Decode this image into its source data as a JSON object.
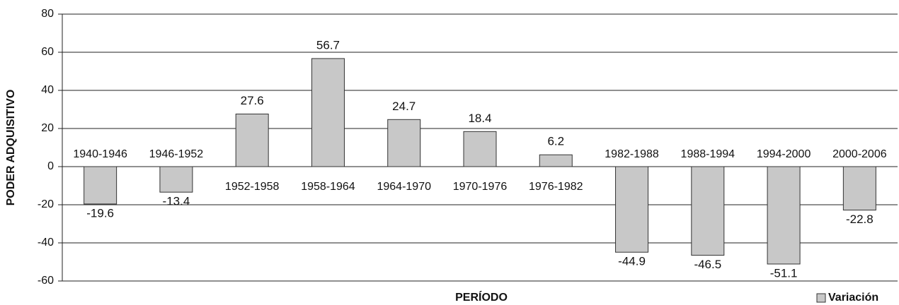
{
  "chart_data": {
    "type": "bar",
    "x_label": "PERÍODO",
    "y_label": "PODER ADQUISITIVO",
    "categories": [
      "1940-1946",
      "1946-1952",
      "1952-1958",
      "1958-1964",
      "1964-1970",
      "1970-1976",
      "1976-1982",
      "1982-1988",
      "1988-1994",
      "1994-2000",
      "2000-2006"
    ],
    "series": [
      {
        "name": "Variación",
        "color": "#c8c8c8",
        "values": [
          -19.6,
          -13.4,
          27.6,
          56.7,
          24.7,
          18.4,
          6.2,
          -44.9,
          -46.5,
          -51.1,
          -22.8
        ]
      }
    ],
    "ylim": [
      -60,
      80
    ],
    "yticks": [
      -60,
      -40,
      -20,
      0,
      20,
      40,
      60,
      80
    ],
    "grid": true,
    "legend": "bottom-right"
  }
}
